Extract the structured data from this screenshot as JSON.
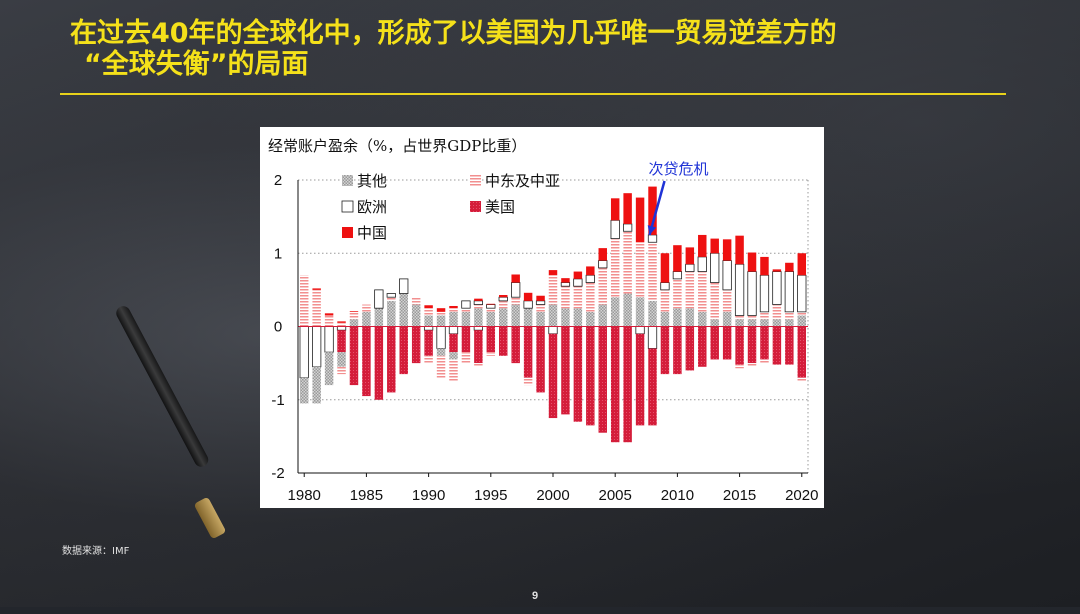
{
  "slide": {
    "title_line1": "在过去40年的全球化中，形成了以美国为几乎唯一贸易逆差方的",
    "title_line2": "“全球失衡”的局面",
    "source": "数据来源：IMF",
    "page_number": "9"
  },
  "colors": {
    "title": "#f5e11a",
    "other": "#b9b9b9",
    "mideast": "#f4a3a3",
    "europe": "#ffffff",
    "us": "#d41d3a",
    "china": "#ee1111",
    "annotation": "#1f33d6"
  },
  "chart_data": {
    "type": "bar",
    "stacked": true,
    "title": "经常账户盈余（%，占世界GDP比重）",
    "ylim": [
      -2,
      2
    ],
    "yticks": [
      2,
      1,
      0,
      -1,
      -2
    ],
    "xticks": [
      "1980",
      "1985",
      "1990",
      "1995",
      "2000",
      "2005",
      "2010",
      "2015",
      "2020"
    ],
    "grid": "horizontal dotted",
    "legend_placement": "top-left",
    "annotation": {
      "text": "次贷危机",
      "year": 2008
    },
    "x": [
      1980,
      1981,
      1982,
      1983,
      1984,
      1985,
      1986,
      1987,
      1988,
      1989,
      1990,
      1991,
      1992,
      1993,
      1994,
      1995,
      1996,
      1997,
      1998,
      1999,
      2000,
      2001,
      2002,
      2003,
      2004,
      2005,
      2006,
      2007,
      2008,
      2009,
      2010,
      2011,
      2012,
      2013,
      2014,
      2015,
      2016,
      2017,
      2018,
      2019,
      2020
    ],
    "series": [
      {
        "name": "其他",
        "key": "other",
        "positive": true,
        "values": [
          0.0,
          0.0,
          0.0,
          0.0,
          0.1,
          0.2,
          0.25,
          0.35,
          0.45,
          0.3,
          0.15,
          0.15,
          0.2,
          0.2,
          0.25,
          0.2,
          0.25,
          0.3,
          0.25,
          0.2,
          0.3,
          0.25,
          0.25,
          0.2,
          0.3,
          0.4,
          0.45,
          0.4,
          0.35,
          0.2,
          0.25,
          0.25,
          0.2,
          0.1,
          0.2,
          0.1,
          0.1,
          0.1,
          0.1,
          0.1,
          0.15
        ]
      },
      {
        "name": "中东及中亚",
        "key": "mideast",
        "positive": true,
        "values": [
          0.7,
          0.5,
          0.15,
          0.05,
          0.1,
          0.1,
          0.0,
          0.05,
          0.0,
          0.1,
          0.1,
          0.05,
          0.05,
          0.05,
          0.05,
          0.05,
          0.1,
          0.1,
          0.0,
          0.1,
          0.4,
          0.3,
          0.3,
          0.4,
          0.5,
          0.8,
          0.85,
          0.75,
          0.8,
          0.3,
          0.4,
          0.5,
          0.55,
          0.5,
          0.3,
          0.05,
          0.05,
          0.1,
          0.2,
          0.1,
          0.05
        ]
      },
      {
        "name": "欧洲",
        "key": "europe",
        "positive": true,
        "values": [
          0.0,
          0.0,
          0.0,
          0.0,
          0.0,
          0.0,
          0.25,
          0.05,
          0.2,
          0.0,
          0.0,
          0.0,
          0.0,
          0.1,
          0.05,
          0.05,
          0.05,
          0.2,
          0.1,
          0.05,
          0.0,
          0.05,
          0.1,
          0.1,
          0.1,
          0.25,
          0.1,
          0.0,
          0.1,
          0.1,
          0.1,
          0.1,
          0.2,
          0.4,
          0.4,
          0.7,
          0.6,
          0.5,
          0.45,
          0.55,
          0.5
        ]
      },
      {
        "name": "中国",
        "key": "china",
        "positive": true,
        "values": [
          0.0,
          0.02,
          0.03,
          0.02,
          0.01,
          0.0,
          0.0,
          0.0,
          0.0,
          0.0,
          0.04,
          0.05,
          0.03,
          0.0,
          0.03,
          0.01,
          0.03,
          0.11,
          0.11,
          0.07,
          0.07,
          0.06,
          0.1,
          0.12,
          0.17,
          0.3,
          0.42,
          0.61,
          0.66,
          0.4,
          0.36,
          0.23,
          0.3,
          0.2,
          0.29,
          0.39,
          0.26,
          0.25,
          0.03,
          0.12,
          0.3
        ]
      },
      {
        "name": "欧洲",
        "key": "europe",
        "positive": false,
        "values": [
          -0.7,
          -0.55,
          -0.35,
          -0.05,
          0.0,
          0.0,
          0.0,
          0.0,
          0.0,
          0.0,
          -0.05,
          -0.3,
          -0.1,
          0.0,
          -0.05,
          0.0,
          0.0,
          0.0,
          0.0,
          0.0,
          -0.1,
          0.0,
          0.0,
          0.0,
          0.0,
          0.0,
          0.0,
          -0.1,
          -0.3,
          0.0,
          0.0,
          0.0,
          0.0,
          0.0,
          0.0,
          0.0,
          0.0,
          0.0,
          0.0,
          0.0,
          0.0
        ]
      },
      {
        "name": "美国",
        "key": "us",
        "positive": false,
        "values": [
          0.0,
          0.0,
          0.0,
          -0.3,
          -0.8,
          -0.95,
          -1.0,
          -0.9,
          -0.65,
          -0.5,
          -0.35,
          0.0,
          -0.25,
          -0.35,
          -0.45,
          -0.35,
          -0.4,
          -0.5,
          -0.7,
          -0.9,
          -1.15,
          -1.2,
          -1.3,
          -1.35,
          -1.45,
          -1.58,
          -1.58,
          -1.25,
          -1.05,
          -0.65,
          -0.65,
          -0.6,
          -0.55,
          -0.45,
          -0.45,
          -0.52,
          -0.5,
          -0.45,
          -0.52,
          -0.52,
          -0.7
        ]
      },
      {
        "name": "其他",
        "key": "other",
        "positive": false,
        "values": [
          -0.35,
          -0.5,
          -0.45,
          -0.2,
          0.0,
          0.0,
          0.0,
          0.0,
          0.0,
          0.0,
          0.0,
          -0.1,
          -0.1,
          0.0,
          0.0,
          0.0,
          0.0,
          0.0,
          0.0,
          0.0,
          0.0,
          0.0,
          0.0,
          0.0,
          0.0,
          0.0,
          0.0,
          0.0,
          0.0,
          0.0,
          0.0,
          0.0,
          0.0,
          0.0,
          0.0,
          0.0,
          0.0,
          0.0,
          0.0,
          0.0,
          0.0
        ]
      },
      {
        "name": "中东及中亚",
        "key": "mideast",
        "positive": false,
        "values": [
          0.0,
          0.0,
          0.0,
          -0.1,
          0.0,
          0.0,
          0.0,
          0.0,
          0.0,
          0.0,
          -0.1,
          -0.3,
          -0.3,
          -0.15,
          -0.05,
          -0.05,
          0.0,
          0.0,
          -0.1,
          0.0,
          0.0,
          0.0,
          0.0,
          0.0,
          0.0,
          0.0,
          0.0,
          0.0,
          0.0,
          0.0,
          0.0,
          0.0,
          0.0,
          0.0,
          0.0,
          -0.05,
          -0.05,
          -0.05,
          0.0,
          0.0,
          -0.05
        ]
      }
    ],
    "legend": [
      {
        "label": "其他",
        "key": "other"
      },
      {
        "label": "中东及中亚",
        "key": "mideast"
      },
      {
        "label": "欧洲",
        "key": "europe"
      },
      {
        "label": "美国",
        "key": "us"
      },
      {
        "label": "中国",
        "key": "china"
      }
    ]
  }
}
